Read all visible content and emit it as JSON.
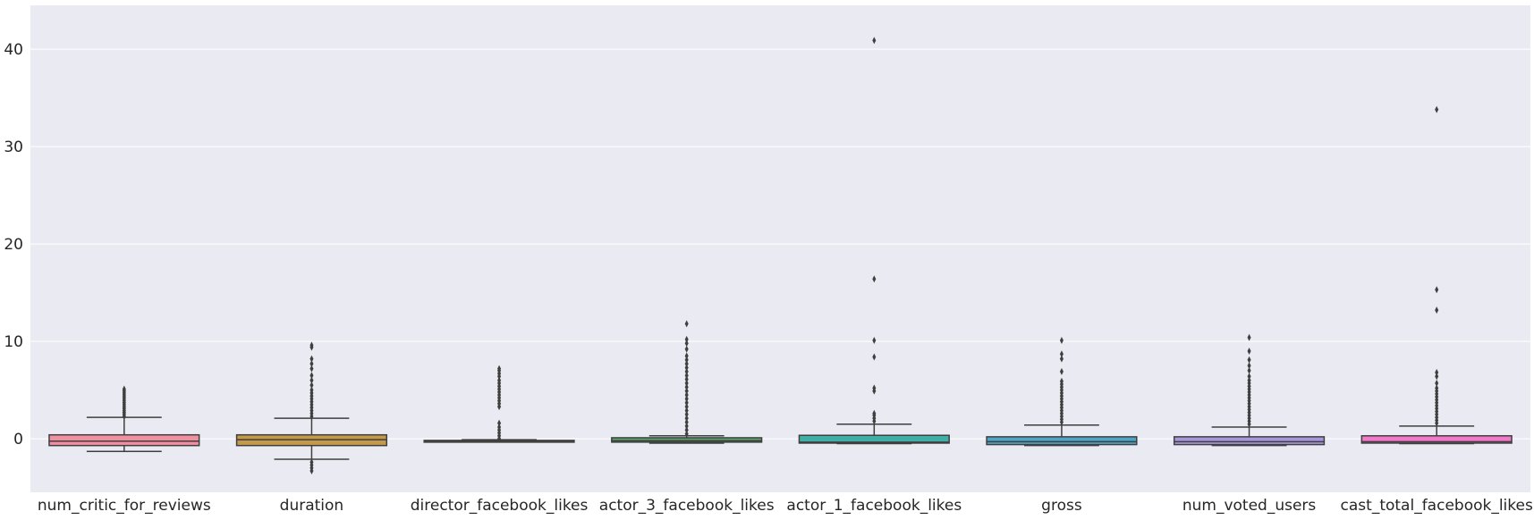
{
  "chart_data": {
    "type": "box",
    "title": "",
    "xlabel": "",
    "ylabel": "",
    "ylim": [
      -5.5,
      44.5
    ],
    "yticks": [
      0,
      10,
      20,
      30,
      40
    ],
    "ytick_labels": [
      "0",
      "10",
      "20",
      "30",
      "40"
    ],
    "grid": true,
    "legend": "none",
    "background_color": "#eaeaf2",
    "grid_color": "#ffffff",
    "line_color": "#3f3f3f",
    "categories": [
      "num_critic_for_reviews",
      "duration",
      "director_facebook_likes",
      "actor_3_facebook_likes",
      "actor_1_facebook_likes",
      "gross",
      "num_voted_users",
      "cast_total_facebook_likes"
    ],
    "boxes": [
      {
        "color": "#f08fa0",
        "whisker_low": -1.3,
        "q1": -0.7,
        "median": -0.25,
        "q3": 0.4,
        "whisker_high": 2.2,
        "outliers": [
          2.3,
          2.5,
          2.7,
          2.9,
          3.1,
          3.3,
          3.5,
          3.7,
          3.9,
          4.1,
          4.3,
          4.5,
          4.7,
          4.9,
          5.1
        ]
      },
      {
        "color": "#c49a4a",
        "whisker_low": -2.1,
        "q1": -0.7,
        "median": -0.1,
        "q3": 0.4,
        "whisker_high": 2.1,
        "outliers": [
          -2.4,
          -2.7,
          -3.0,
          -3.3,
          2.3,
          2.6,
          2.9,
          3.2,
          3.5,
          3.8,
          4.1,
          4.4,
          4.7,
          5.0,
          5.5,
          6.0,
          6.5,
          7.2,
          7.7,
          8.2,
          9.4,
          9.6
        ]
      },
      {
        "color": "#a2a24a",
        "whisker_low": -0.28,
        "q1": -0.26,
        "median": -0.24,
        "q3": -0.17,
        "whisker_high": -0.1,
        "outliers": [
          0.0,
          0.3,
          0.6,
          0.9,
          1.2,
          1.6,
          3.3,
          3.6,
          3.9,
          4.2,
          4.5,
          4.8,
          5.1,
          5.4,
          5.7,
          6.0,
          6.4,
          6.7,
          7.0,
          7.2
        ]
      },
      {
        "color": "#55a868",
        "whisker_low": -0.45,
        "q1": -0.35,
        "median": -0.2,
        "q3": 0.1,
        "whisker_high": 0.3,
        "outliers": [
          0.5,
          0.9,
          1.3,
          1.7,
          2.1,
          2.5,
          2.9,
          3.3,
          3.7,
          4.1,
          4.5,
          4.9,
          5.3,
          5.7,
          6.1,
          6.5,
          6.9,
          7.3,
          7.7,
          8.1,
          8.5,
          9.2,
          9.8,
          10.2,
          11.8
        ]
      },
      {
        "color": "#40b0a6",
        "whisker_low": -0.5,
        "q1": -0.45,
        "median": -0.35,
        "q3": 0.35,
        "whisker_high": 1.5,
        "outliers": [
          1.8,
          2.1,
          2.4,
          2.6,
          4.9,
          5.2,
          8.4,
          10.1,
          16.4,
          40.9
        ]
      },
      {
        "color": "#4ea4c7",
        "whisker_low": -0.7,
        "q1": -0.6,
        "median": -0.3,
        "q3": 0.2,
        "whisker_high": 1.4,
        "outliers": [
          1.7,
          2.0,
          2.3,
          2.6,
          2.9,
          3.2,
          3.5,
          3.8,
          4.1,
          4.4,
          4.7,
          5.0,
          5.3,
          5.6,
          5.9,
          6.9,
          8.2,
          8.7,
          10.1
        ]
      },
      {
        "color": "#a796dc",
        "whisker_low": -0.7,
        "q1": -0.6,
        "median": -0.3,
        "q3": 0.2,
        "whisker_high": 1.2,
        "outliers": [
          1.5,
          1.8,
          2.1,
          2.4,
          2.7,
          3.0,
          3.3,
          3.6,
          3.9,
          4.2,
          4.5,
          4.8,
          5.1,
          5.4,
          5.7,
          6.0,
          6.4,
          7.0,
          7.5,
          8.1,
          9.0,
          10.4
        ]
      },
      {
        "color": "#f279c9",
        "whisker_low": -0.5,
        "q1": -0.45,
        "median": -0.3,
        "q3": 0.3,
        "whisker_high": 1.3,
        "outliers": [
          1.6,
          1.9,
          2.2,
          2.5,
          2.8,
          3.1,
          3.4,
          3.7,
          4.0,
          4.3,
          4.6,
          4.9,
          5.2,
          5.7,
          6.4,
          6.8,
          13.2,
          15.3,
          33.8
        ]
      }
    ]
  }
}
